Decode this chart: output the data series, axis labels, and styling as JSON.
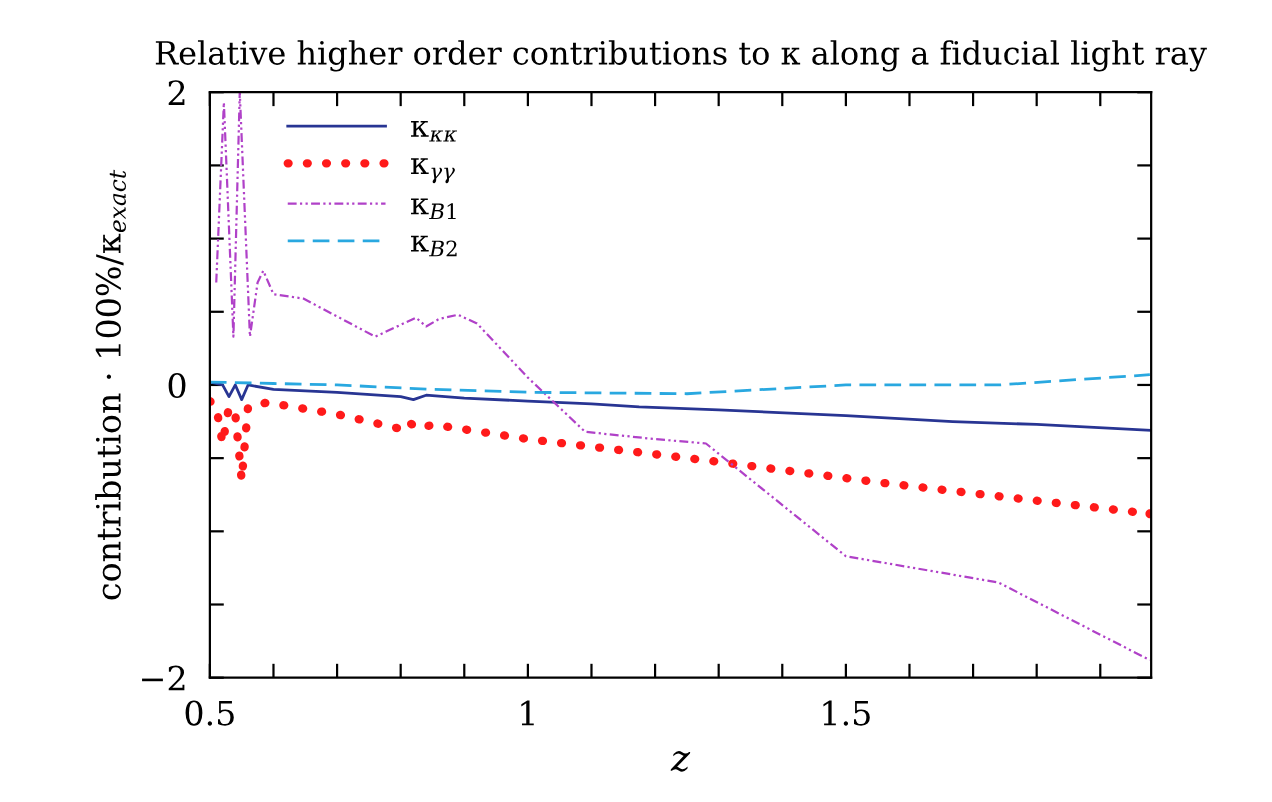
{
  "chart_data": {
    "type": "line",
    "title": "Relative higher order contributions to κ along a fiducial light ray",
    "xlabel": "z",
    "ylabel": "contribution · 100%/κ$_{exact}$",
    "xlim": [
      0.5,
      1.98
    ],
    "ylim": [
      -2,
      2
    ],
    "xticks": [
      0.5,
      {
        "value": 0.6,
        "label": null
      },
      {
        "value": 0.7,
        "label": null
      },
      {
        "value": 0.8,
        "label": null
      },
      {
        "value": 0.9,
        "label": null
      },
      1,
      {
        "value": 1.1,
        "label": null
      },
      {
        "value": 1.2,
        "label": null
      },
      {
        "value": 1.3,
        "label": null
      },
      {
        "value": 1.4,
        "label": null
      },
      1.5,
      {
        "value": 1.6,
        "label": null
      },
      {
        "value": 1.7,
        "label": null
      },
      {
        "value": 1.8,
        "label": null
      },
      {
        "value": 1.9,
        "label": null
      }
    ],
    "yticks": [
      -2,
      {
        "value": -1.5,
        "label": null
      },
      {
        "value": -1,
        "label": null
      },
      {
        "value": -0.5,
        "label": null
      },
      0,
      {
        "value": 0.5,
        "label": null
      },
      {
        "value": 1,
        "label": null
      },
      {
        "value": 1.5,
        "label": null
      },
      2
    ],
    "grid": false,
    "legend": "top left",
    "series": [
      {
        "name": "κ$_{κκ}$",
        "color": "#283593",
        "line_style": "solid",
        "x": [
          0.5,
          0.52,
          0.53,
          0.54,
          0.55,
          0.56,
          0.6,
          0.7,
          0.8,
          0.82,
          0.84,
          0.9,
          1.0,
          1.1,
          1.175,
          1.3,
          1.5,
          1.668,
          1.8,
          1.978
        ],
        "values": [
          0.02,
          0.0,
          -0.08,
          0.0,
          -0.1,
          0.0,
          -0.03,
          -0.05,
          -0.08,
          -0.1,
          -0.07,
          -0.09,
          -0.11,
          -0.13,
          -0.15,
          -0.17,
          -0.21,
          -0.25,
          -0.27,
          -0.31
        ]
      },
      {
        "name": "κ$_{γγ}$",
        "color": "#ff1a1a",
        "line_style": "dotted",
        "x": [
          0.5,
          0.51,
          0.52,
          0.53,
          0.54,
          0.55,
          0.56,
          0.59,
          0.7,
          0.8,
          0.81,
          0.83,
          0.85,
          1.0,
          1.29,
          1.56,
          1.978
        ],
        "values": [
          -0.11,
          -0.15,
          -0.4,
          -0.15,
          -0.2,
          -0.65,
          -0.15,
          -0.12,
          -0.2,
          -0.3,
          -0.25,
          -0.3,
          -0.27,
          -0.37,
          -0.52,
          -0.67,
          -0.88
        ]
      },
      {
        "name": "κ$_{B1}$",
        "color": "#b041c8",
        "line_style": "dashdot",
        "x": [
          0.51,
          0.522,
          0.537,
          0.547,
          0.563,
          0.575,
          0.584,
          0.6,
          0.647,
          0.76,
          0.824,
          0.84,
          0.86,
          0.89,
          0.92,
          1.0,
          1.09,
          1.2,
          1.28,
          1.5,
          1.74,
          1.978
        ],
        "values": [
          0.7,
          1.93,
          0.33,
          2.0,
          0.33,
          0.7,
          0.78,
          0.62,
          0.59,
          0.33,
          0.46,
          0.4,
          0.45,
          0.48,
          0.42,
          0.05,
          -0.32,
          -0.37,
          -0.4,
          -1.17,
          -1.35,
          -1.88
        ]
      },
      {
        "name": "κ$_{B2}$",
        "color": "#29a8e0",
        "line_style": "dashed",
        "x": [
          0.5,
          0.6,
          0.7,
          0.85,
          1.0,
          1.25,
          1.5,
          1.74,
          1.978
        ],
        "values": [
          0.02,
          0.01,
          0.0,
          -0.03,
          -0.05,
          -0.06,
          0.0,
          0.0,
          0.07
        ]
      }
    ]
  }
}
